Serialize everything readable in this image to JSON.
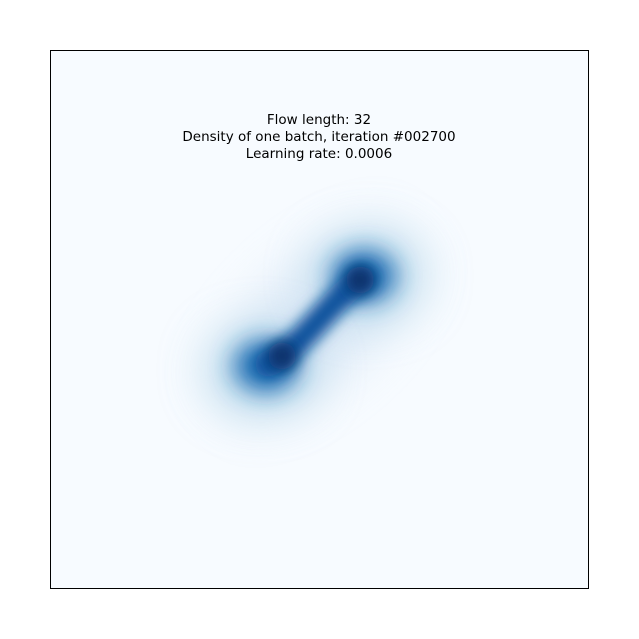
{
  "chart_data": {
    "type": "density",
    "title": [
      "Flow length: 32",
      "Density of one batch, iteration #002700",
      "Learning rate: 0.0006"
    ]
  }
}
